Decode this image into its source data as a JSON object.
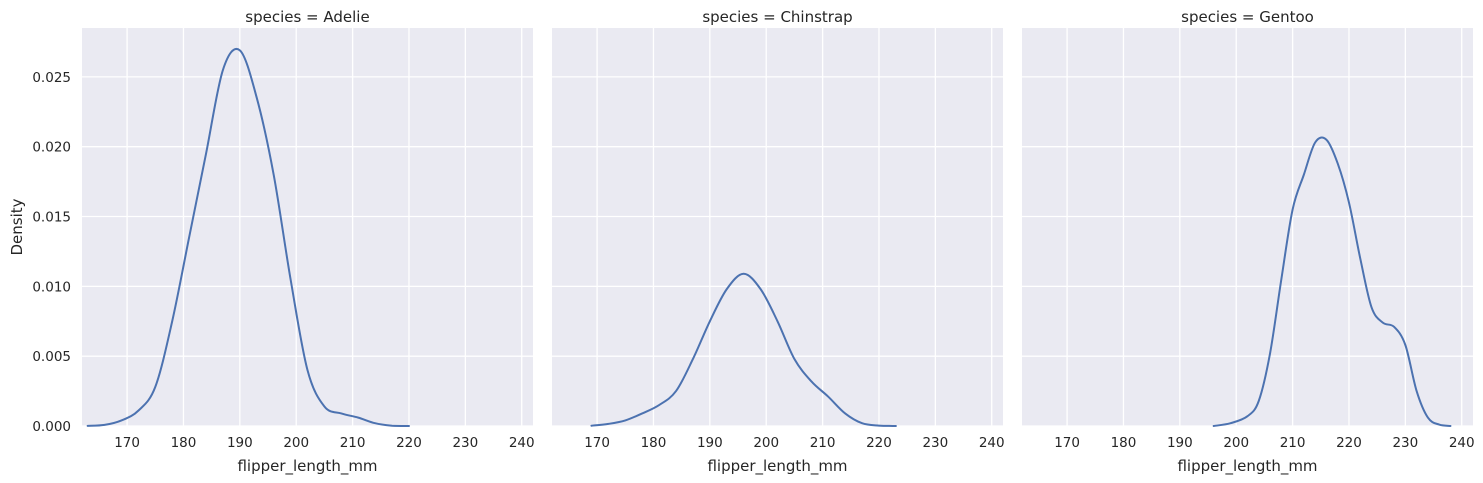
{
  "chart_data": {
    "type": "line",
    "facets": [
      {
        "title": "species = Adelie",
        "x": [
          163,
          166,
          169,
          172,
          175,
          178,
          181,
          184,
          187,
          190,
          193,
          196,
          199,
          202,
          205,
          208,
          211,
          214,
          217,
          220
        ],
        "y": [
          1e-05,
          8e-05,
          0.0004,
          0.0011,
          0.0028,
          0.0075,
          0.0135,
          0.0195,
          0.0255,
          0.0269,
          0.0235,
          0.018,
          0.0105,
          0.004,
          0.0014,
          0.0009,
          0.0006,
          0.0002,
          2e-05,
          0.0
        ]
      },
      {
        "title": "species = Chinstrap",
        "x": [
          169,
          172,
          175,
          178,
          181,
          184,
          187,
          190,
          193,
          196,
          199,
          202,
          205,
          208,
          211,
          214,
          217,
          220,
          223
        ],
        "y": [
          2e-05,
          0.00015,
          0.0004,
          0.0009,
          0.0015,
          0.0025,
          0.0048,
          0.0075,
          0.0098,
          0.0109,
          0.0098,
          0.0075,
          0.0048,
          0.0032,
          0.0021,
          0.0009,
          0.0002,
          3e-05,
          0.0
        ]
      },
      {
        "title": "species = Gentoo",
        "x": [
          196,
          199,
          202,
          204,
          206,
          208,
          210,
          212,
          214,
          216,
          218,
          220,
          222,
          224,
          226,
          228,
          230,
          232,
          234,
          236,
          238
        ],
        "y": [
          0.0,
          0.0002,
          0.0007,
          0.0018,
          0.0052,
          0.0105,
          0.0155,
          0.018,
          0.0203,
          0.0205,
          0.0188,
          0.016,
          0.012,
          0.0085,
          0.0074,
          0.0071,
          0.0058,
          0.0025,
          0.0006,
          0.0001,
          0.0
        ]
      }
    ],
    "xlabel": "flipper_length_mm",
    "ylabel": "Density",
    "xlim": [
      162,
      242
    ],
    "ylim": [
      0,
      0.0285
    ],
    "xticks": [
      170,
      180,
      190,
      200,
      210,
      220,
      230,
      240
    ],
    "xtick_labels": [
      "170",
      "180",
      "190",
      "200",
      "210",
      "220",
      "230",
      "240"
    ],
    "yticks": [
      0,
      0.005,
      0.01,
      0.015,
      0.02,
      0.025
    ],
    "ytick_labels": [
      "0.000",
      "0.005",
      "0.010",
      "0.015",
      "0.020",
      "0.025"
    ],
    "grid": true,
    "sharey": true,
    "line_color": "#4c72b0",
    "background_color": "#eaeaf2"
  }
}
